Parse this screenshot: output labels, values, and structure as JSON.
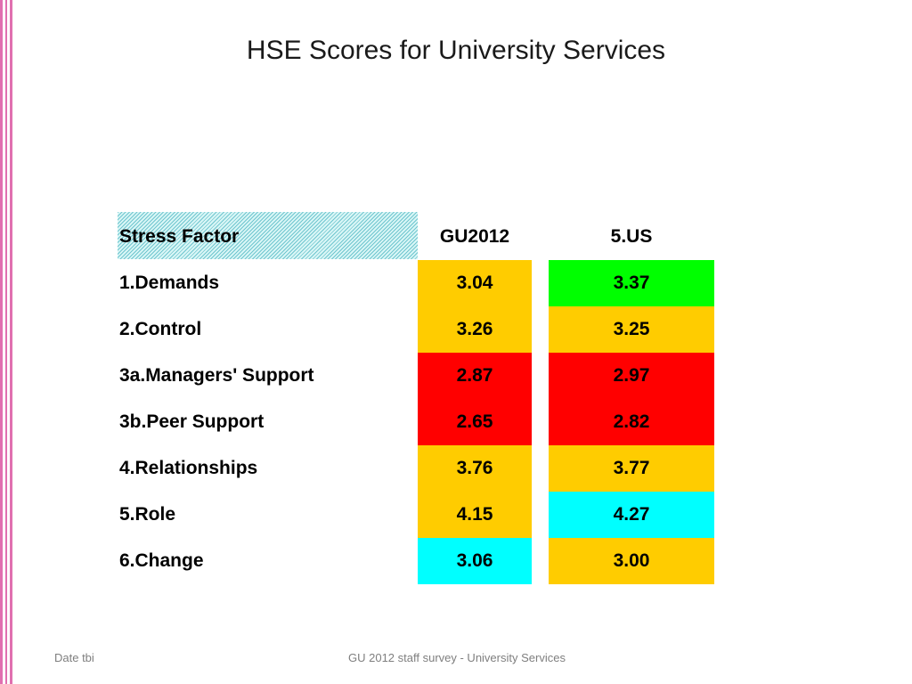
{
  "slide": {
    "title": "HSE Scores for University Services"
  },
  "table": {
    "headers": {
      "factor": "Stress Factor",
      "col1": "GU2012",
      "col2": "5.US"
    },
    "rows": [
      {
        "factor": "1.Demands",
        "gu2012": "3.04",
        "us": "3.37"
      },
      {
        "factor": "2.Control",
        "gu2012": "3.26",
        "us": "3.25"
      },
      {
        "factor": "3a.Managers' Support",
        "gu2012": "2.87",
        "us": "2.97"
      },
      {
        "factor": "3b.Peer Support",
        "gu2012": "2.65",
        "us": "2.82"
      },
      {
        "factor": "4.Relationships",
        "gu2012": "3.76",
        "us": "3.77"
      },
      {
        "factor": "5.Role",
        "gu2012": "4.15",
        "us": "4.27"
      },
      {
        "factor": "6.Change",
        "gu2012": "3.06",
        "us": "3.00"
      }
    ]
  },
  "colors": {
    "amber": "#ffcc00",
    "red": "#ff0000",
    "green": "#00ff00",
    "cyan": "#00ffff",
    "accent_stripe": "#e070b0"
  },
  "footer": {
    "left": "Date tbi",
    "center": "GU 2012 staff survey -  University Services"
  }
}
